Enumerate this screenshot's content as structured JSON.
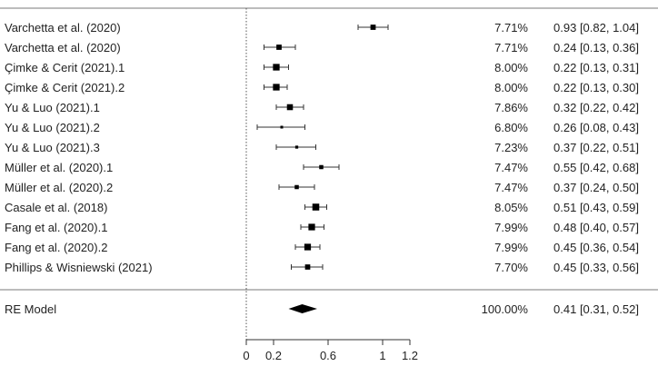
{
  "chart_data": {
    "type": "forest",
    "studies": [
      {
        "label": "Varchetta  et al. (2020)",
        "weight": "7.71%",
        "estimate": 0.93,
        "ci": [
          0.82,
          1.04
        ],
        "summary": "0.93 [0.82, 1.04]"
      },
      {
        "label": "Varchetta et  al. (2020)",
        "weight": "7.71%",
        "estimate": 0.24,
        "ci": [
          0.13,
          0.36
        ],
        "summary": "0.24 [0.13, 0.36]"
      },
      {
        "label": "Çimke &  Cerit (2021).1",
        "weight": "8.00%",
        "estimate": 0.22,
        "ci": [
          0.13,
          0.31
        ],
        "summary": "0.22 [0.13, 0.31]"
      },
      {
        "label": "Çimke &  Cerit (2021).2",
        "weight": "8.00%",
        "estimate": 0.22,
        "ci": [
          0.13,
          0.3
        ],
        "summary": "0.22 [0.13, 0.30]"
      },
      {
        "label": "Yu &  Luo (2021).1",
        "weight": "7.86%",
        "estimate": 0.32,
        "ci": [
          0.22,
          0.42
        ],
        "summary": "0.32 [0.22, 0.42]"
      },
      {
        "label": "Yu &  Luo (2021).2",
        "weight": "6.80%",
        "estimate": 0.26,
        "ci": [
          0.08,
          0.43
        ],
        "summary": "0.26 [0.08, 0.43]"
      },
      {
        "label": "Yu &  Luo (2021).3",
        "weight": "7.23%",
        "estimate": 0.37,
        "ci": [
          0.22,
          0.51
        ],
        "summary": "0.37 [0.22, 0.51]"
      },
      {
        "label": "Müller et al. (2020).1",
        "weight": "7.47%",
        "estimate": 0.55,
        "ci": [
          0.42,
          0.68
        ],
        "summary": "0.55 [0.42, 0.68]"
      },
      {
        "label": "Müller et al. (2020).2",
        "weight": "7.47%",
        "estimate": 0.37,
        "ci": [
          0.24,
          0.5
        ],
        "summary": "0.37 [0.24, 0.50]"
      },
      {
        "label": "Casale et al. (2018)",
        "weight": "8.05%",
        "estimate": 0.51,
        "ci": [
          0.43,
          0.59
        ],
        "summary": "0.51 [0.43, 0.59]"
      },
      {
        "label": "Fang et al. (2020).1",
        "weight": "7.99%",
        "estimate": 0.48,
        "ci": [
          0.4,
          0.57
        ],
        "summary": "0.48 [0.40, 0.57]"
      },
      {
        "label": "Fang et al. (2020).2",
        "weight": "7.99%",
        "estimate": 0.45,
        "ci": [
          0.36,
          0.54
        ],
        "summary": "0.45 [0.36, 0.54]"
      },
      {
        "label": "Phillips & Wisniewski (2021)",
        "weight": "7.70%",
        "estimate": 0.45,
        "ci": [
          0.33,
          0.56
        ],
        "summary": "0.45 [0.33, 0.56]"
      }
    ],
    "model": {
      "label": "RE Model",
      "weight": "100.00%",
      "estimate": 0.41,
      "ci": [
        0.31,
        0.52
      ],
      "summary": "0.41 [0.31, 0.52]"
    },
    "reference_line": 0,
    "xlim": [
      0,
      1.2
    ],
    "xticks": [
      0,
      0.2,
      0.6,
      1,
      1.2
    ],
    "xtick_labels": [
      "0",
      "0.2",
      "0.6",
      "1",
      "1.2"
    ],
    "colors": {
      "marker": "#000000",
      "line": "#333333",
      "rule": "#7a7a7a",
      "text": "#222222"
    }
  }
}
